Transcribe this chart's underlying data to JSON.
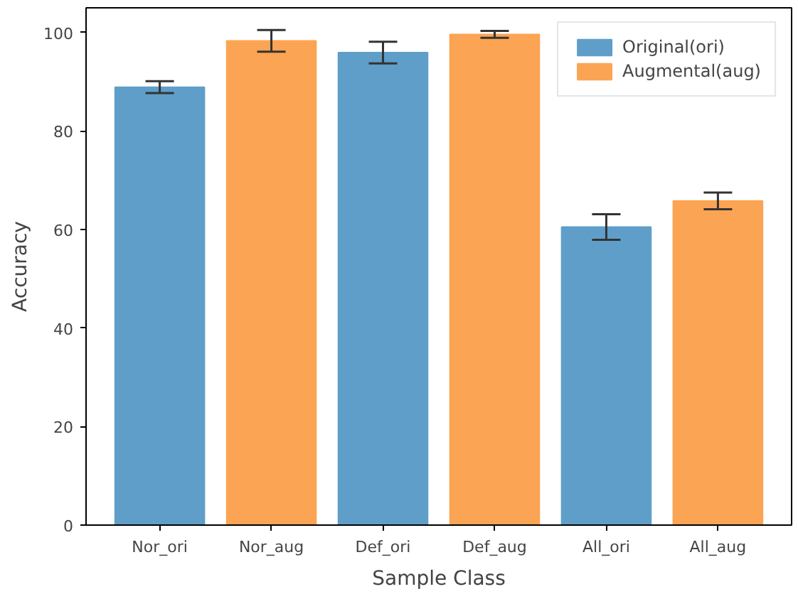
{
  "chart_data": {
    "type": "bar",
    "xlabel": "Sample Class",
    "ylabel": "Accuracy",
    "categories": [
      "Nor_ori",
      "Nor_aug",
      "Def_ori",
      "Def_aug",
      "All_ori",
      "All_aug"
    ],
    "series": [
      {
        "name": "Original(ori)",
        "color": "#5f9ec9",
        "values": [
          88.9,
          null,
          95.9,
          null,
          60.5,
          null
        ],
        "errors": [
          1.2,
          null,
          2.2,
          null,
          2.6,
          null
        ]
      },
      {
        "name": "Augmental(aug)",
        "color": "#fba453",
        "values": [
          null,
          98.3,
          null,
          99.6,
          null,
          65.8
        ],
        "errors": [
          null,
          2.2,
          null,
          0.7,
          null,
          1.7
        ]
      }
    ],
    "ylim": [
      0,
      105
    ],
    "yticks": [
      0,
      20,
      40,
      60,
      80,
      100
    ],
    "grid": false,
    "legend": "top right"
  }
}
